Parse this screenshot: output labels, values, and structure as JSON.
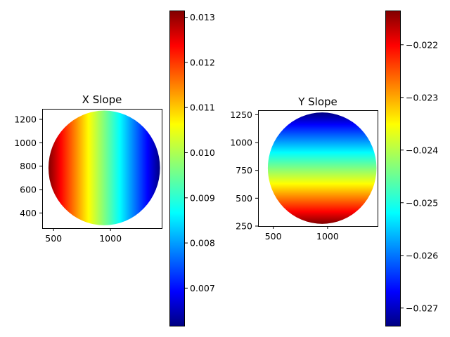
{
  "chart_data": [
    {
      "type": "heatmap",
      "title": "X Slope",
      "xlabel": "",
      "ylabel": "",
      "gradient_direction": "horizontal",
      "gradient_reversed": true,
      "xlim": [
        400,
        1450
      ],
      "ylim": [
        1290,
        270
      ],
      "x_ticks": [
        500,
        1000
      ],
      "y_ticks": [
        400,
        600,
        800,
        1000,
        1200
      ],
      "circle": {
        "cx": 945,
        "cy": 785,
        "r": 490
      },
      "colorbar": {
        "cmap": "jet",
        "vmin": 0.00615,
        "vmax": 0.01315,
        "ticks": [
          "0.007",
          "0.008",
          "0.009",
          "0.010",
          "0.011",
          "0.012",
          "0.013"
        ]
      }
    },
    {
      "type": "heatmap",
      "title": "Y Slope",
      "xlabel": "",
      "ylabel": "",
      "gradient_direction": "vertical",
      "gradient_reversed": false,
      "xlim": [
        360,
        1460
      ],
      "ylim": [
        1290,
        250
      ],
      "x_ticks": [
        500,
        1000
      ],
      "y_ticks": [
        250,
        500,
        750,
        1000,
        1250
      ],
      "circle": {
        "cx": 950,
        "cy": 770,
        "r": 500
      },
      "colorbar": {
        "cmap": "jet",
        "vmin": -0.02735,
        "vmax": -0.02135,
        "ticks": [
          "−0.027",
          "−0.026",
          "−0.025",
          "−0.024",
          "−0.023",
          "−0.022"
        ]
      }
    }
  ]
}
